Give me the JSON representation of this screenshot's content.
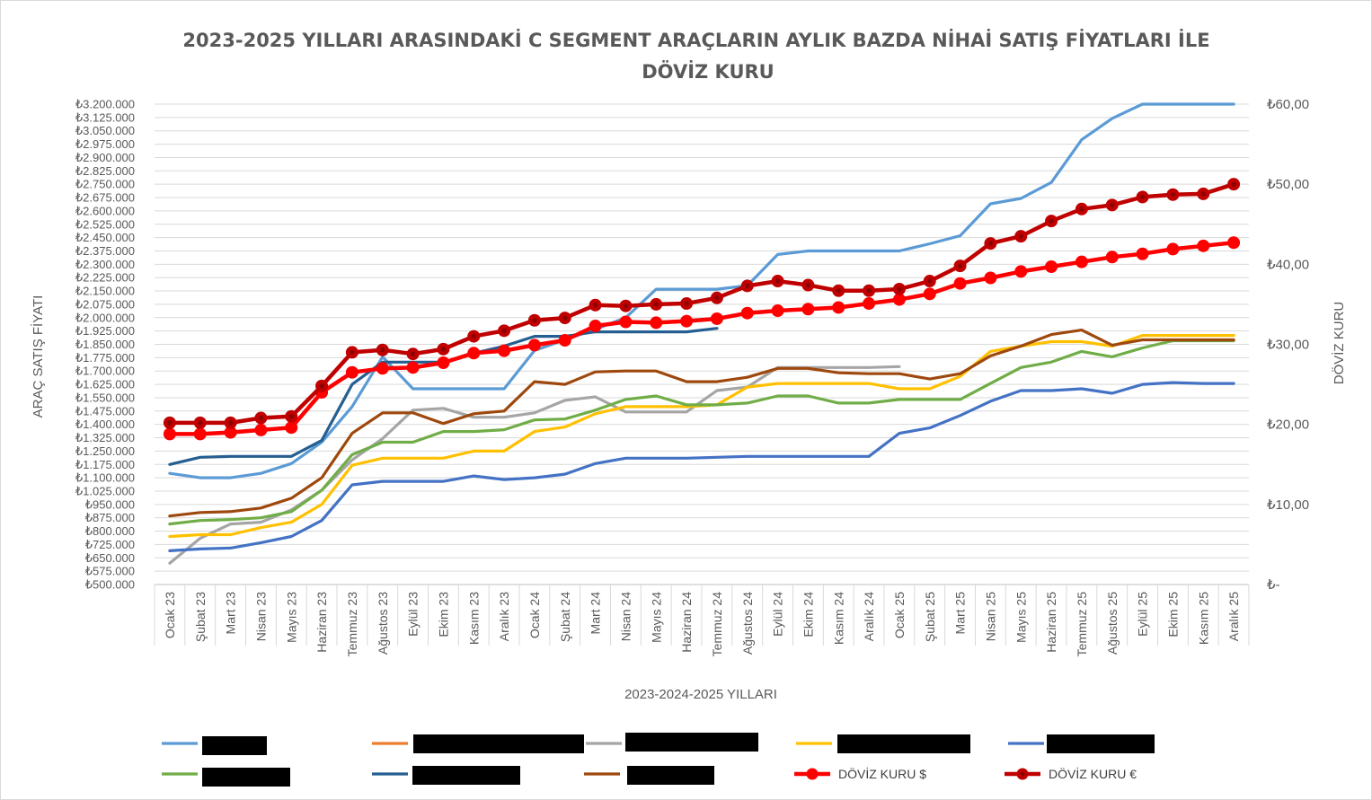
{
  "chart_data": {
    "type": "line",
    "title_line1": "2023-2025 YILLARI ARASINDAKİ C SEGMENT ARAÇLARIN AYLIK BAZDA NİHAİ SATIŞ FİYATLARI İLE",
    "title_line2": "DÖVİZ KURU",
    "xlabel": "2023-2024-2025 YILLARI",
    "ylabel": "ARAÇ SATIŞ FİYATI",
    "ylabel_right": "DÖVİZ KURU",
    "ylim": [
      500000,
      3200000
    ],
    "ylim_right": [
      0,
      60
    ],
    "y_ticks": [
      "₺3.200.000",
      "₺3.125.000",
      "₺3.050.000",
      "₺2.975.000",
      "₺2.900.000",
      "₺2.825.000",
      "₺2.750.000",
      "₺2.675.000",
      "₺2.600.000",
      "₺2.525.000",
      "₺2.450.000",
      "₺2.375.000",
      "₺2.300.000",
      "₺2.225.000",
      "₺2.150.000",
      "₺2.075.000",
      "₺2.000.000",
      "₺1.925.000",
      "₺1.850.000",
      "₺1.775.000",
      "₺1.700.000",
      "₺1.625.000",
      "₺1.550.000",
      "₺1.475.000",
      "₺1.400.000",
      "₺1.325.000",
      "₺1.250.000",
      "₺1.175.000",
      "₺1.100.000",
      "₺1.025.000",
      "₺950.000",
      "₺875.000",
      "₺800.000",
      "₺725.000",
      "₺650.000",
      "₺575.000",
      "₺500.000"
    ],
    "y_ticks_right": [
      "₺60,00",
      "₺50,00",
      "₺40,00",
      "₺30,00",
      "₺20,00",
      "₺10,00",
      "₺-"
    ],
    "grid": true,
    "legend_position": "bottom",
    "categories": [
      "Ocak 23",
      "Şubat 23",
      "Mart 23",
      "Nisan 23",
      "Mayıs 23",
      "Haziran 23",
      "Temmuz 23",
      "Ağustos 23",
      "Eylül 23",
      "Ekim 23",
      "Kasım 23",
      "Aralık 23",
      "Ocak 24",
      "Şubat 24",
      "Mart 24",
      "Nisan 24",
      "Mayıs 24",
      "Haziran 24",
      "Temmuz 24",
      "Ağustos 24",
      "Eylül 24",
      "Ekim 24",
      "Kasım 24",
      "Aralık 24",
      "Ocak 25",
      "Şubat 25",
      "Mart 25",
      "Nisan 25",
      "Mayıs 25",
      "Haziran 25",
      "Temmuz 25",
      "Ağustos 25",
      "Eylül 25",
      "Ekim 25",
      "Kasım 25",
      "Aralık 25"
    ],
    "series": [
      {
        "axis": "left",
        "color": "#5b9bd5",
        "marker": false,
        "values": [
          1125000,
          1100000,
          1100000,
          1125000,
          1180000,
          1300000,
          1500000,
          1780000,
          1600000,
          1600000,
          1600000,
          1600000,
          1815000,
          1875000,
          1935000,
          2000000,
          2160000,
          2160000,
          2160000,
          2180000,
          2355000,
          2375000,
          2375000,
          2375000,
          2375000,
          2415000,
          2460000,
          2640000,
          2670000,
          2760000,
          3000000,
          3120000,
          3200000,
          3200000,
          3200000,
          3200000
        ]
      },
      {
        "axis": "left",
        "color": "#a5a5a5",
        "marker": false,
        "values": [
          620000,
          760000,
          840000,
          850000,
          920000,
          1030000,
          1200000,
          1320000,
          1480000,
          1490000,
          1440000,
          1440000,
          1465000,
          1535000,
          1555000,
          1470000,
          1470000,
          1470000,
          1590000,
          1610000,
          1720000,
          1720000,
          1720000,
          1720000,
          1725000,
          null,
          null,
          null,
          null,
          null,
          null,
          null,
          null,
          null,
          null,
          null
        ]
      },
      {
        "axis": "left",
        "color": "#ffc000",
        "marker": false,
        "values": [
          770000,
          780000,
          780000,
          820000,
          850000,
          950000,
          1170000,
          1210000,
          1210000,
          1210000,
          1250000,
          1250000,
          1360000,
          1385000,
          1460000,
          1500000,
          1500000,
          1500000,
          1510000,
          1610000,
          1630000,
          1630000,
          1630000,
          1630000,
          1600000,
          1600000,
          1670000,
          1810000,
          1840000,
          1865000,
          1865000,
          1840000,
          1900000,
          1900000,
          1900000,
          1900000
        ]
      },
      {
        "axis": "left",
        "color": "#4472c4",
        "marker": false,
        "values": [
          690000,
          700000,
          705000,
          735000,
          770000,
          860000,
          1060000,
          1080000,
          1080000,
          1080000,
          1110000,
          1090000,
          1100000,
          1120000,
          1180000,
          1210000,
          1210000,
          1210000,
          1215000,
          1220000,
          1220000,
          1220000,
          1220000,
          1220000,
          1350000,
          1380000,
          1450000,
          1530000,
          1590000,
          1590000,
          1600000,
          1575000,
          1625000,
          1635000,
          1630000,
          1630000
        ]
      },
      {
        "axis": "left",
        "color": "#70ad47",
        "marker": false,
        "values": [
          840000,
          860000,
          865000,
          875000,
          910000,
          1030000,
          1230000,
          1300000,
          1300000,
          1360000,
          1360000,
          1370000,
          1425000,
          1430000,
          1480000,
          1540000,
          1560000,
          1510000,
          1510000,
          1520000,
          1560000,
          1560000,
          1520000,
          1520000,
          1540000,
          1540000,
          1540000,
          1630000,
          1720000,
          1750000,
          1810000,
          1780000,
          1830000,
          1870000,
          1870000,
          1870000
        ]
      },
      {
        "axis": "left",
        "color": "#255e91",
        "marker": false,
        "values": [
          1175000,
          1215000,
          1220000,
          1220000,
          1220000,
          1310000,
          1625000,
          1750000,
          1750000,
          1750000,
          1800000,
          1840000,
          1895000,
          1895000,
          1920000,
          1920000,
          1920000,
          1920000,
          1940000,
          null,
          null,
          null,
          null,
          null,
          null,
          null,
          null,
          null,
          null,
          null,
          null,
          null,
          null,
          null,
          null,
          null
        ]
      },
      {
        "axis": "left",
        "color": "#9e480e",
        "marker": false,
        "values": [
          885000,
          905000,
          910000,
          930000,
          985000,
          1100000,
          1350000,
          1465000,
          1465000,
          1405000,
          1460000,
          1475000,
          1640000,
          1625000,
          1695000,
          1700000,
          1700000,
          1640000,
          1640000,
          1665000,
          1715000,
          1715000,
          1690000,
          1685000,
          1685000,
          1655000,
          1685000,
          1785000,
          1840000,
          1905000,
          1930000,
          1845000,
          1875000,
          1875000,
          1875000,
          1875000
        ]
      },
      {
        "axis": "right",
        "color": "#ff0000",
        "marker": true,
        "name": "DÖVİZ KURU $",
        "values": [
          18.8,
          18.8,
          19.0,
          19.3,
          19.6,
          24.0,
          26.5,
          27.0,
          27.1,
          27.7,
          28.9,
          29.2,
          29.9,
          30.5,
          32.3,
          32.8,
          32.7,
          32.9,
          33.2,
          33.9,
          34.2,
          34.4,
          34.6,
          35.1,
          35.6,
          36.3,
          37.6,
          38.3,
          39.1,
          39.7,
          40.3,
          40.9,
          41.3,
          41.9,
          42.3,
          42.7
        ]
      },
      {
        "axis": "right",
        "color": "#c00000",
        "marker": true,
        "name": "DÖVİZ KURU €",
        "values": [
          20.2,
          20.2,
          20.2,
          20.8,
          21.0,
          24.8,
          29.0,
          29.3,
          28.8,
          29.4,
          31.0,
          31.7,
          33.0,
          33.3,
          34.9,
          34.8,
          35.0,
          35.1,
          35.8,
          37.3,
          37.9,
          37.4,
          36.7,
          36.7,
          36.9,
          37.9,
          39.8,
          42.6,
          43.5,
          45.4,
          46.9,
          47.4,
          48.4,
          48.7,
          48.8,
          50.0
        ]
      }
    ],
    "legend": [
      {
        "name": "",
        "color": "#5b9bd5",
        "marker": false
      },
      {
        "name": "",
        "color": "#ed7d31",
        "marker": false
      },
      {
        "name": "",
        "color": "#a5a5a5",
        "marker": false
      },
      {
        "name": "",
        "color": "#ffc000",
        "marker": false
      },
      {
        "name": "",
        "color": "#4472c4",
        "marker": false
      },
      {
        "name": "",
        "color": "#70ad47",
        "marker": false
      },
      {
        "name": "",
        "color": "#255e91",
        "marker": false
      },
      {
        "name": "",
        "color": "#9e480e",
        "marker": false
      },
      {
        "name": "DÖVİZ KURU $",
        "color": "#ff0000",
        "marker": true
      },
      {
        "name": "DÖVİZ KURU €",
        "color": "#c00000",
        "marker": true
      }
    ],
    "legend_redacted": true
  }
}
